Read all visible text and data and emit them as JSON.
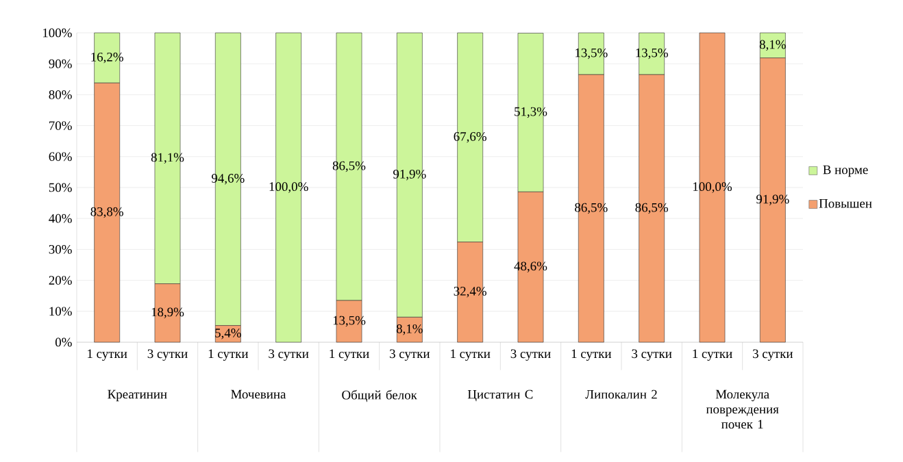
{
  "chart_data": {
    "type": "bar",
    "stacked": true,
    "categories": [
      "1 сутки",
      "3 сутки",
      "1 сутки",
      "3 сутки",
      "1 сутки",
      "3 сутки",
      "1 сутки",
      "3 сутки",
      "1 сутки",
      "3 сутки",
      "1 сутки",
      "3 сутки"
    ],
    "series": [
      {
        "name": "Повышен",
        "color": "#f4a070",
        "values": [
          83.8,
          18.9,
          5.4,
          0,
          13.5,
          8.1,
          32.4,
          48.6,
          86.5,
          86.5,
          100,
          91.9
        ],
        "value_labels": [
          "83,8%",
          "18,9%",
          "5,4%",
          null,
          "13,5%",
          "8,1%",
          "32,4%",
          "48,6%",
          "86,5%",
          "86,5%",
          "100,0%",
          "91,9%"
        ]
      },
      {
        "name": "В норме",
        "color": "#ccf59a",
        "values": [
          16.2,
          81.1,
          94.6,
          100,
          86.5,
          91.9,
          67.6,
          51.3,
          13.5,
          13.5,
          0,
          8.1
        ],
        "value_labels": [
          "16,2%",
          "81,1%",
          "94,6%",
          "100,0%",
          "86,5%",
          "91,9%",
          "67,6%",
          "51,3%",
          "13,5%",
          "13,5%",
          null,
          "8,1%"
        ]
      }
    ],
    "annotations": [
      "Креатинин",
      "Мочевина",
      "Общий белок",
      "Цистатин С",
      "Липокалин 2",
      "Молекула повреждения почек 1"
    ],
    "ylim": [
      0,
      100
    ],
    "yticks": [
      {
        "value": 0,
        "label": "0%"
      },
      {
        "value": 10,
        "label": "10%"
      },
      {
        "value": 20,
        "label": "20%"
      },
      {
        "value": 30,
        "label": "30%"
      },
      {
        "value": 40,
        "label": "40%"
      },
      {
        "value": 50,
        "label": "50%"
      },
      {
        "value": 60,
        "label": "60%"
      },
      {
        "value": 70,
        "label": "70%"
      },
      {
        "value": 80,
        "label": "80%"
      },
      {
        "value": 90,
        "label": "90%"
      },
      {
        "value": 100,
        "label": "100%"
      }
    ],
    "grid": "y",
    "legend": "right"
  }
}
